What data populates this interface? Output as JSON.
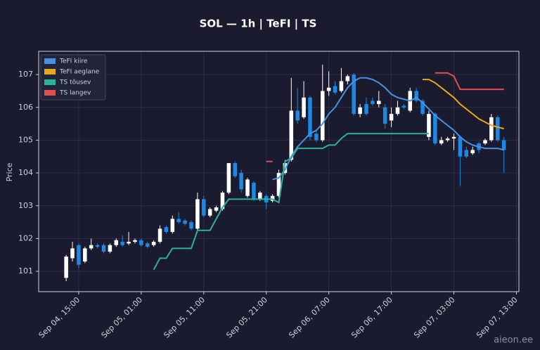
{
  "chart_data": {
    "type": "candlestick",
    "title": "SOL — 1h  |  TeFI  |  TS",
    "y_label": "Price",
    "watermark": "aieon.ee",
    "up_color": "#ffffff",
    "down_color": "#1e88e5",
    "grid": true,
    "legend": "upper left",
    "ylim": [
      100.38,
      107.71
    ],
    "yticks": [
      101,
      102,
      103,
      104,
      105,
      106,
      107
    ],
    "xticks": [
      "Sep 04, 15:00",
      "Sep 05, 01:00",
      "Sep 05, 11:00",
      "Sep 05, 21:00",
      "Sep 06, 07:00",
      "Sep 06, 17:00",
      "Sep 07, 03:00",
      "Sep 07, 13:00"
    ],
    "x": [
      "Sep 04, 13:00",
      "Sep 04, 14:00",
      "Sep 04, 15:00",
      "Sep 04, 16:00",
      "Sep 04, 17:00",
      "Sep 04, 18:00",
      "Sep 04, 19:00",
      "Sep 04, 20:00",
      "Sep 04, 21:00",
      "Sep 04, 22:00",
      "Sep 04, 23:00",
      "Sep 05, 00:00",
      "Sep 05, 01:00",
      "Sep 05, 02:00",
      "Sep 05, 03:00",
      "Sep 05, 04:00",
      "Sep 05, 05:00",
      "Sep 05, 06:00",
      "Sep 05, 07:00",
      "Sep 05, 08:00",
      "Sep 05, 09:00",
      "Sep 05, 10:00",
      "Sep 05, 11:00",
      "Sep 05, 12:00",
      "Sep 05, 13:00",
      "Sep 05, 14:00",
      "Sep 05, 15:00",
      "Sep 05, 16:00",
      "Sep 05, 17:00",
      "Sep 05, 18:00",
      "Sep 05, 19:00",
      "Sep 05, 20:00",
      "Sep 05, 21:00",
      "Sep 05, 22:00",
      "Sep 05, 23:00",
      "Sep 06, 00:00",
      "Sep 06, 01:00",
      "Sep 06, 02:00",
      "Sep 06, 03:00",
      "Sep 06, 04:00",
      "Sep 06, 05:00",
      "Sep 06, 06:00",
      "Sep 06, 07:00",
      "Sep 06, 08:00",
      "Sep 06, 09:00",
      "Sep 06, 10:00",
      "Sep 06, 11:00",
      "Sep 06, 12:00",
      "Sep 06, 13:00",
      "Sep 06, 14:00",
      "Sep 06, 15:00",
      "Sep 06, 16:00",
      "Sep 06, 17:00",
      "Sep 06, 18:00",
      "Sep 06, 19:00",
      "Sep 06, 20:00",
      "Sep 06, 21:00",
      "Sep 06, 22:00",
      "Sep 06, 23:00",
      "Sep 07, 00:00",
      "Sep 07, 01:00",
      "Sep 07, 02:00",
      "Sep 07, 03:00",
      "Sep 07, 04:00",
      "Sep 07, 05:00",
      "Sep 07, 06:00",
      "Sep 07, 07:00",
      "Sep 07, 08:00",
      "Sep 07, 09:00",
      "Sep 07, 10:00",
      "Sep 07, 11:00"
    ],
    "open": [
      100.8,
      101.4,
      101.8,
      101.3,
      101.7,
      101.8,
      101.8,
      101.6,
      101.8,
      101.9,
      101.85,
      101.9,
      101.95,
      101.85,
      101.8,
      101.9,
      102.35,
      102.2,
      102.6,
      102.55,
      102.5,
      102.3,
      103.2,
      102.7,
      102.85,
      102.9,
      103.4,
      104.3,
      104.0,
      103.3,
      103.7,
      103.2,
      103.3,
      103.15,
      103.3,
      104.0,
      104.4,
      105.9,
      105.7,
      106.3,
      105.2,
      105.0,
      106.5,
      106.65,
      106.5,
      106.8,
      107.0,
      105.8,
      106.1,
      106.2,
      106.1,
      106.0,
      105.6,
      105.8,
      106.05,
      105.9,
      106.5,
      106.2,
      105.1,
      105.8,
      104.9,
      105.0,
      105.05,
      105.1,
      104.7,
      104.6,
      104.9,
      104.9,
      105.0,
      105.7,
      105.0
    ],
    "high": [
      101.5,
      101.9,
      101.85,
      101.75,
      102.0,
      101.85,
      101.85,
      101.85,
      102.0,
      102.1,
      102.2,
      102.0,
      102.0,
      101.9,
      101.95,
      102.4,
      102.4,
      102.7,
      102.8,
      102.6,
      102.55,
      103.4,
      103.3,
      102.95,
      103.0,
      103.45,
      104.3,
      104.35,
      104.1,
      103.85,
      103.75,
      103.45,
      103.35,
      103.35,
      104.1,
      104.4,
      106.9,
      106.6,
      106.8,
      106.35,
      105.3,
      107.3,
      107.1,
      106.8,
      107.2,
      107.0,
      107.05,
      106.1,
      106.3,
      106.3,
      106.5,
      106.1,
      106.0,
      106.2,
      106.1,
      106.6,
      106.6,
      106.25,
      105.9,
      105.85,
      105.1,
      105.1,
      105.2,
      105.15,
      104.8,
      104.8,
      104.95,
      105.05,
      105.8,
      105.75,
      105.1
    ],
    "low": [
      100.7,
      101.3,
      101.1,
      101.25,
      101.65,
      101.7,
      101.55,
      101.55,
      101.75,
      101.75,
      101.8,
      101.85,
      101.75,
      101.7,
      101.75,
      101.85,
      102.15,
      102.15,
      102.45,
      102.4,
      102.25,
      102.25,
      102.65,
      102.65,
      102.8,
      102.85,
      103.35,
      103.85,
      103.4,
      103.25,
      103.15,
      103.15,
      102.9,
      103.1,
      103.25,
      103.95,
      104.35,
      105.5,
      105.65,
      105.0,
      104.95,
      104.95,
      106.35,
      106.4,
      106.45,
      106.7,
      105.75,
      105.7,
      105.75,
      106.05,
      106.0,
      105.35,
      105.4,
      105.75,
      105.95,
      105.85,
      106.15,
      105.75,
      105.0,
      104.85,
      104.85,
      104.95,
      104.7,
      103.6,
      104.45,
      104.55,
      104.6,
      104.85,
      104.95,
      104.95,
      104.0
    ],
    "close": [
      101.45,
      101.7,
      101.2,
      101.7,
      101.8,
      101.75,
      101.6,
      101.8,
      101.95,
      101.8,
      101.9,
      101.95,
      101.8,
      101.75,
      101.9,
      102.3,
      102.2,
      102.6,
      102.5,
      102.45,
      102.3,
      103.2,
      102.7,
      102.9,
      102.95,
      103.4,
      104.3,
      103.9,
      103.5,
      103.8,
      103.2,
      103.4,
      103.1,
      103.3,
      104.0,
      104.3,
      105.9,
      105.6,
      106.3,
      105.1,
      105.0,
      106.5,
      106.6,
      106.45,
      106.8,
      106.95,
      105.8,
      106.0,
      105.8,
      106.1,
      106.2,
      105.5,
      105.8,
      106.0,
      106.0,
      106.5,
      106.2,
      105.8,
      105.8,
      104.9,
      105.0,
      105.05,
      105.1,
      104.5,
      104.5,
      104.7,
      104.7,
      105.0,
      105.7,
      105.0,
      104.7
    ],
    "series": [
      {
        "name": "TeFI kiire",
        "color": "#4a90e2",
        "values": [
          null,
          null,
          null,
          null,
          null,
          null,
          null,
          null,
          null,
          null,
          null,
          null,
          null,
          null,
          null,
          null,
          null,
          null,
          null,
          null,
          null,
          null,
          null,
          null,
          null,
          null,
          null,
          null,
          null,
          null,
          null,
          null,
          null,
          103.8,
          103.85,
          104.1,
          104.5,
          104.8,
          105.0,
          105.2,
          105.3,
          105.5,
          105.8,
          106.0,
          106.3,
          106.6,
          106.8,
          106.9,
          106.9,
          106.85,
          106.75,
          106.6,
          106.4,
          106.3,
          106.25,
          106.2,
          106.3,
          106.15,
          105.95,
          105.75,
          105.6,
          105.45,
          105.3,
          105.1,
          104.95,
          104.85,
          104.8,
          104.75,
          104.75,
          104.75,
          104.7
        ]
      },
      {
        "name": "TeFI aeglane",
        "color": "#e6a817",
        "values": [
          null,
          null,
          null,
          null,
          null,
          null,
          null,
          null,
          null,
          null,
          null,
          null,
          null,
          null,
          null,
          null,
          null,
          null,
          null,
          null,
          null,
          null,
          null,
          null,
          null,
          null,
          null,
          null,
          null,
          null,
          null,
          null,
          null,
          null,
          null,
          null,
          null,
          null,
          null,
          null,
          null,
          null,
          null,
          null,
          null,
          null,
          null,
          null,
          null,
          null,
          null,
          null,
          null,
          null,
          null,
          null,
          null,
          106.85,
          106.85,
          106.75,
          106.6,
          106.45,
          106.3,
          106.1,
          105.95,
          105.8,
          105.65,
          105.55,
          105.45,
          105.4,
          105.35
        ]
      },
      {
        "name": "TS tõusev",
        "color": "#2bb39a",
        "values": [
          null,
          null,
          null,
          null,
          null,
          null,
          null,
          null,
          null,
          null,
          null,
          null,
          null,
          null,
          101.05,
          101.4,
          101.4,
          101.7,
          101.7,
          101.7,
          101.7,
          102.25,
          102.25,
          102.25,
          102.6,
          102.95,
          103.2,
          103.2,
          103.2,
          103.2,
          103.2,
          103.2,
          103.2,
          103.2,
          103.1,
          104.35,
          104.45,
          104.75,
          104.75,
          104.75,
          104.75,
          104.75,
          104.85,
          104.85,
          105.05,
          105.2,
          105.2,
          105.2,
          105.2,
          105.2,
          105.2,
          105.2,
          105.2,
          105.2,
          105.2,
          105.2,
          105.2,
          105.2,
          105.2,
          null,
          null,
          null,
          null,
          null,
          null,
          null,
          null,
          null,
          null,
          null,
          null
        ]
      },
      {
        "name": "TS langev",
        "color": "#e05050",
        "values": [
          null,
          null,
          null,
          null,
          null,
          null,
          null,
          null,
          null,
          null,
          null,
          null,
          null,
          null,
          null,
          null,
          null,
          null,
          null,
          null,
          null,
          null,
          null,
          null,
          null,
          null,
          null,
          null,
          null,
          null,
          null,
          null,
          104.35,
          104.35,
          null,
          null,
          null,
          null,
          null,
          null,
          null,
          null,
          null,
          null,
          null,
          null,
          null,
          null,
          null,
          null,
          null,
          null,
          null,
          null,
          null,
          null,
          null,
          null,
          null,
          107.05,
          107.05,
          107.05,
          106.95,
          106.55,
          106.55,
          106.55,
          106.55,
          106.55,
          106.55,
          106.55,
          106.55
        ]
      }
    ]
  }
}
